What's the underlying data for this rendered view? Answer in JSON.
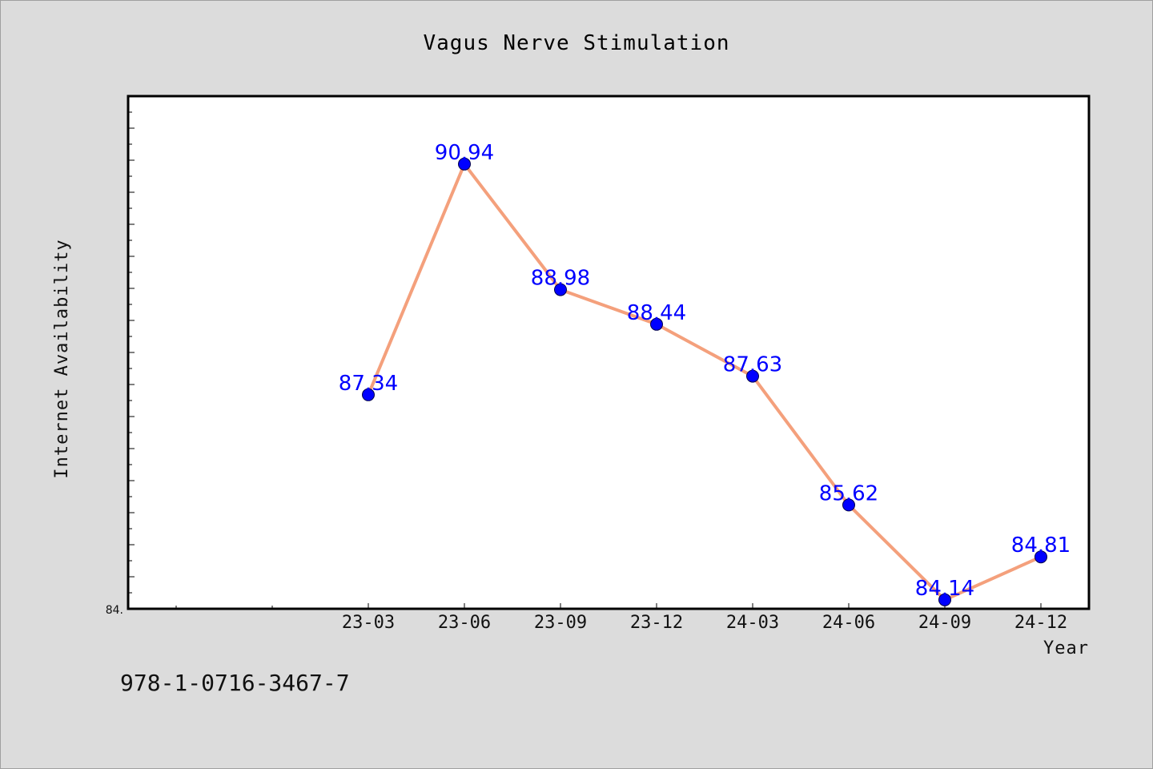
{
  "chart_data": {
    "type": "line",
    "title": "Vagus Nerve Stimulation",
    "xlabel": "Year",
    "ylabel": "Internet Availability",
    "categories": [
      "23-03",
      "23-06",
      "23-09",
      "23-12",
      "24-03",
      "24-06",
      "24-09",
      "24-12"
    ],
    "values": [
      87.34,
      90.94,
      88.98,
      88.44,
      87.63,
      85.62,
      84.14,
      84.81
    ],
    "data_labels": [
      "87.34",
      "90.94",
      "88.98",
      "88.44",
      "87.63",
      "85.62",
      "84.14",
      "84.81"
    ],
    "ylim": [
      84.0,
      92.0
    ],
    "y_tick_label": "84.",
    "grid": false,
    "legend": "none",
    "colors": {
      "line": "#f4a07c",
      "marker": "#0000ff",
      "data_label": "#0000ff",
      "plot_background": "#ffffff",
      "page_background": "#dcdcdc"
    }
  },
  "footer": {
    "isbn": "978-1-0716-3467-7"
  }
}
